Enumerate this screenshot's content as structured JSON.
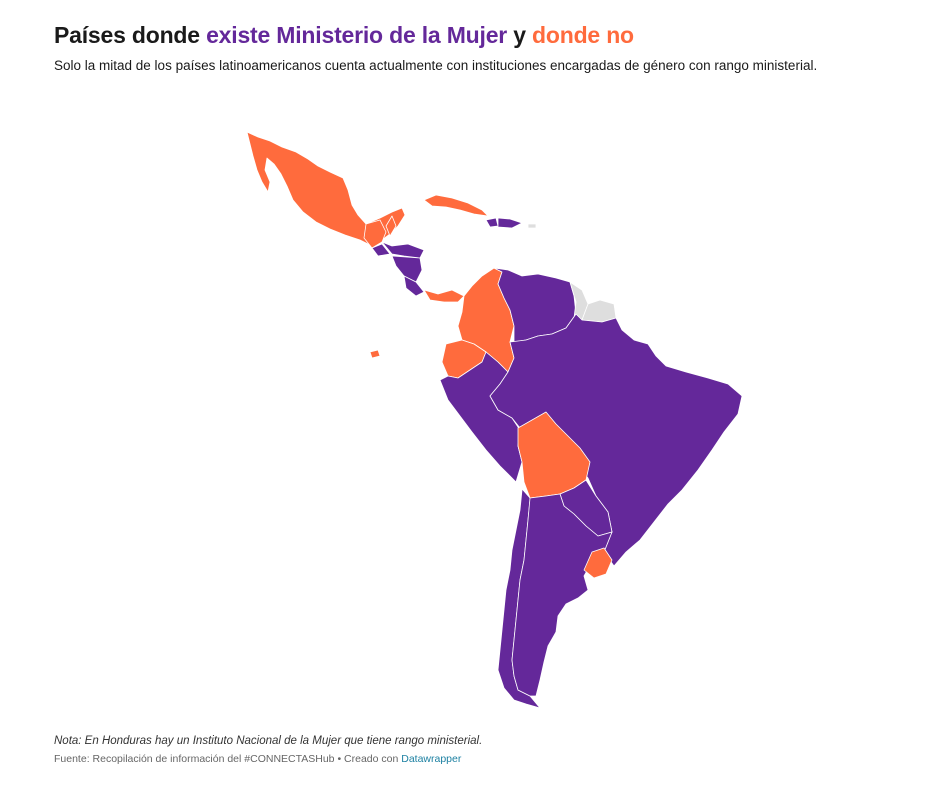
{
  "title": {
    "part1": "Países donde ",
    "part2": "existe Ministerio de la Mujer",
    "part3": " y ",
    "part4": "donde no"
  },
  "subtitle": "Solo la mitad de los países latinoamericanos cuenta actualmente con instituciones encargadas de género con rango ministerial.",
  "colors": {
    "existe": "#64289a",
    "no_existe": "#ff6b3d",
    "sin_datos": "#dedede",
    "borders": "#ffffff"
  },
  "map": {
    "countries": [
      {
        "name": "México",
        "status": "no"
      },
      {
        "name": "Guatemala",
        "status": "no"
      },
      {
        "name": "Belice",
        "status": "no"
      },
      {
        "name": "Honduras",
        "status": "existe"
      },
      {
        "name": "El Salvador",
        "status": "existe"
      },
      {
        "name": "Nicaragua",
        "status": "existe"
      },
      {
        "name": "Costa Rica",
        "status": "existe"
      },
      {
        "name": "Panamá",
        "status": "no"
      },
      {
        "name": "Cuba",
        "status": "no"
      },
      {
        "name": "Haití",
        "status": "existe"
      },
      {
        "name": "República Dominicana",
        "status": "existe"
      },
      {
        "name": "Colombia",
        "status": "no"
      },
      {
        "name": "Venezuela",
        "status": "existe"
      },
      {
        "name": "Guyana",
        "status": "sin_datos"
      },
      {
        "name": "Surinam",
        "status": "sin_datos"
      },
      {
        "name": "Ecuador",
        "status": "no"
      },
      {
        "name": "Perú",
        "status": "existe"
      },
      {
        "name": "Brasil",
        "status": "existe"
      },
      {
        "name": "Bolivia",
        "status": "no"
      },
      {
        "name": "Paraguay",
        "status": "existe"
      },
      {
        "name": "Chile",
        "status": "existe"
      },
      {
        "name": "Argentina",
        "status": "existe"
      },
      {
        "name": "Uruguay",
        "status": "no"
      }
    ]
  },
  "footer": {
    "note": "Nota: En Honduras hay un Instituto Nacional de la Mujer que tiene rango ministerial.",
    "source_prefix": "Fuente: Recopilación de información del #CONNECTASHub • Creado con ",
    "source_link": "Datawrapper"
  }
}
